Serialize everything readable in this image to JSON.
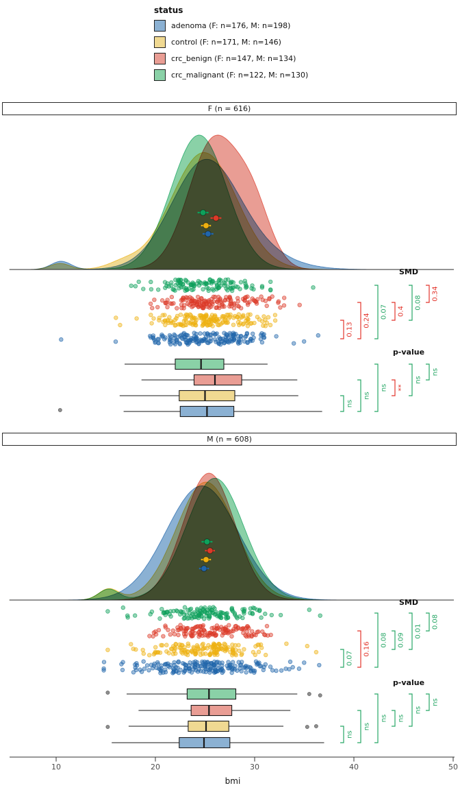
{
  "colors": {
    "fill": {
      "adenoma": "#8bb1d3",
      "control": "#f0d992",
      "crc_benign": "#e99d94",
      "crc_malignant": "#8ad1a7"
    },
    "point": {
      "adenoma": "#2166ab",
      "control": "#eeb111",
      "crc_benign": "#dc3a28",
      "crc_malignant": "#0ea05b"
    },
    "sig": {
      "green": "#27a766",
      "red": "#e2352c"
    },
    "outlier": "#7a7a7a",
    "axis_text": "#4d4d4d"
  },
  "legend": {
    "title": "status",
    "items": [
      {
        "key": "adenoma",
        "label": "adenoma (F: n=176, M: n=198)"
      },
      {
        "key": "control",
        "label": "control (F: n=171, M: n=146)"
      },
      {
        "key": "crc_benign",
        "label": "crc_benign (F: n=147, M: n=134)"
      },
      {
        "key": "crc_malignant",
        "label": "crc_malignant (F: n=122, M: n=130)"
      }
    ]
  },
  "chart_data": {
    "type": "raincloud",
    "x_variable": "bmi",
    "axis": {
      "label": "bmi",
      "ticks": [
        "10",
        "20",
        "30",
        "40",
        "50"
      ],
      "tick_values": [
        10,
        20,
        30,
        40,
        50
      ],
      "range": [
        5,
        50
      ]
    },
    "row_order": [
      "crc_malignant",
      "crc_benign",
      "control",
      "adenoma"
    ],
    "panels": [
      {
        "id": "F",
        "title": "F (n = 616)",
        "groups": {
          "adenoma": {
            "n": 176,
            "mean": 25.3,
            "ci": 0.55,
            "jitter_sd": 3.5,
            "box": {
              "lo": 16.8,
              "q1": 22.5,
              "med": 25.2,
              "q3": 27.9,
              "hi": 36.8
            },
            "box_outliers": [
              10.4
            ],
            "jitter_extras": [
              10.5,
              36.4
            ],
            "density": {
              "components": [
                [
                  25.0,
                  3.4,
                  0.88
                ],
                [
                  30.5,
                  3.5,
                  0.1
                ],
                [
                  10.5,
                  1.0,
                  0.02
                ]
              ],
              "peak": 0.82
            }
          },
          "control": {
            "n": 171,
            "mean": 25.1,
            "ci": 0.5,
            "jitter_sd": 3.4,
            "box": {
              "lo": 16.4,
              "q1": 22.4,
              "med": 25.0,
              "q3": 28.0,
              "hi": 34.4
            },
            "box_outliers": [],
            "jitter_extras": [],
            "density": {
              "components": [
                [
                  24.9,
                  3.3,
                  0.96
                ],
                [
                  10.4,
                  1.0,
                  0.015
                ],
                [
                  16.8,
                  1.6,
                  0.025
                ]
              ],
              "peak": 0.87
            }
          },
          "crc_benign": {
            "n": 147,
            "mean": 26.1,
            "ci": 0.55,
            "jitter_sd": 3.1,
            "box": {
              "lo": 18.6,
              "q1": 23.9,
              "med": 26.0,
              "q3": 28.7,
              "hi": 34.3
            },
            "box_outliers": [],
            "jitter_extras": [],
            "density": {
              "components": [
                [
                  25.9,
                  2.55,
                  0.78
                ],
                [
                  29.9,
                  1.8,
                  0.22
                ]
              ],
              "peak": 1.0
            }
          },
          "crc_malignant": {
            "n": 122,
            "mean": 24.8,
            "ci": 0.55,
            "jitter_sd": 2.9,
            "box": {
              "lo": 16.9,
              "q1": 22.0,
              "med": 24.6,
              "q3": 26.9,
              "hi": 31.3
            },
            "box_outliers": [],
            "jitter_extras": [
              35.9
            ],
            "density": {
              "components": [
                [
                  24.4,
                  2.8,
                  1.0
                ]
              ],
              "peak": 1.0
            }
          }
        },
        "smd": {
          "header": "SMD",
          "comparisons": [
            {
              "a": "adenoma",
              "b": "control",
              "label": "0.13",
              "color": "red"
            },
            {
              "a": "adenoma",
              "b": "crc_benign",
              "label": "0.24",
              "color": "red"
            },
            {
              "a": "adenoma",
              "b": "crc_malignant",
              "label": "0.07",
              "color": "green"
            },
            {
              "a": "control",
              "b": "crc_benign",
              "label": "0.4",
              "color": "red"
            },
            {
              "a": "control",
              "b": "crc_malignant",
              "label": "0.08",
              "color": "green"
            },
            {
              "a": "crc_benign",
              "b": "crc_malignant",
              "label": "0.34",
              "color": "red"
            }
          ]
        },
        "pvalue": {
          "header": "p-value",
          "comparisons": [
            {
              "a": "adenoma",
              "b": "control",
              "label": "ns",
              "color": "green"
            },
            {
              "a": "adenoma",
              "b": "crc_benign",
              "label": "ns",
              "color": "green"
            },
            {
              "a": "adenoma",
              "b": "crc_malignant",
              "label": "ns",
              "color": "green"
            },
            {
              "a": "control",
              "b": "crc_benign",
              "label": "**",
              "color": "red"
            },
            {
              "a": "control",
              "b": "crc_malignant",
              "label": "ns",
              "color": "green"
            },
            {
              "a": "crc_benign",
              "b": "crc_malignant",
              "label": "ns",
              "color": "green"
            }
          ]
        }
      },
      {
        "id": "M",
        "title": "M (n = 608)",
        "groups": {
          "adenoma": {
            "n": 198,
            "mean": 24.9,
            "ci": 0.5,
            "jitter_sd": 3.7,
            "box": {
              "lo": 15.6,
              "q1": 22.4,
              "med": 24.9,
              "q3": 27.5,
              "hi": 37.0
            },
            "box_outliers": [],
            "jitter_extras": [
              36.5
            ],
            "density": {
              "components": [
                [
                  24.7,
                  3.6,
                  1.0
                ]
              ],
              "peak": 0.9
            }
          },
          "control": {
            "n": 146,
            "mean": 25.1,
            "ci": 0.5,
            "jitter_sd": 3.1,
            "box": {
              "lo": 17.3,
              "q1": 23.3,
              "med": 25.1,
              "q3": 27.4,
              "hi": 32.9
            },
            "box_outliers": [
              15.2,
              35.3,
              36.2
            ],
            "jitter_extras": [
              15.2,
              35.3,
              36.2
            ],
            "density": {
              "components": [
                [
                  25.1,
                  3.0,
                  0.97
                ],
                [
                  15.3,
                  1.0,
                  0.03
                ]
              ],
              "peak": 0.93
            }
          },
          "crc_benign": {
            "n": 134,
            "mean": 25.5,
            "ci": 0.5,
            "jitter_sd": 3.0,
            "box": {
              "lo": 18.3,
              "q1": 23.6,
              "med": 25.4,
              "q3": 27.7,
              "hi": 33.6
            },
            "box_outliers": [],
            "jitter_extras": [],
            "density": {
              "components": [
                [
                  25.4,
                  2.6,
                  1.0
                ]
              ],
              "peak": 1.0
            }
          },
          "crc_malignant": {
            "n": 130,
            "mean": 25.2,
            "ci": 0.55,
            "jitter_sd": 3.1,
            "box": {
              "lo": 17.1,
              "q1": 23.2,
              "med": 25.4,
              "q3": 28.1,
              "hi": 34.3
            },
            "box_outliers": [
              15.2,
              35.5,
              36.6
            ],
            "jitter_extras": [
              15.2,
              35.5,
              36.6
            ],
            "density": {
              "components": [
                [
                  26.0,
                  2.9,
                  0.97
                ],
                [
                  15.3,
                  1.0,
                  0.03
                ]
              ],
              "peak": 0.96
            }
          }
        },
        "smd": {
          "header": "SMD",
          "comparisons": [
            {
              "a": "adenoma",
              "b": "control",
              "label": "0.07",
              "color": "green"
            },
            {
              "a": "adenoma",
              "b": "crc_benign",
              "label": "0.16",
              "color": "red"
            },
            {
              "a": "adenoma",
              "b": "crc_malignant",
              "label": "0.08",
              "color": "green"
            },
            {
              "a": "control",
              "b": "crc_benign",
              "label": "0.09",
              "color": "green"
            },
            {
              "a": "control",
              "b": "crc_malignant",
              "label": "0.01",
              "color": "green"
            },
            {
              "a": "crc_benign",
              "b": "crc_malignant",
              "label": "0.08",
              "color": "green"
            }
          ]
        },
        "pvalue": {
          "header": "p-value",
          "comparisons": [
            {
              "a": "adenoma",
              "b": "control",
              "label": "ns",
              "color": "green"
            },
            {
              "a": "adenoma",
              "b": "crc_benign",
              "label": "ns",
              "color": "green"
            },
            {
              "a": "adenoma",
              "b": "crc_malignant",
              "label": "ns",
              "color": "green"
            },
            {
              "a": "control",
              "b": "crc_benign",
              "label": "ns",
              "color": "green"
            },
            {
              "a": "control",
              "b": "crc_malignant",
              "label": "ns",
              "color": "green"
            },
            {
              "a": "crc_benign",
              "b": "crc_malignant",
              "label": "ns",
              "color": "green"
            }
          ]
        }
      }
    ]
  }
}
